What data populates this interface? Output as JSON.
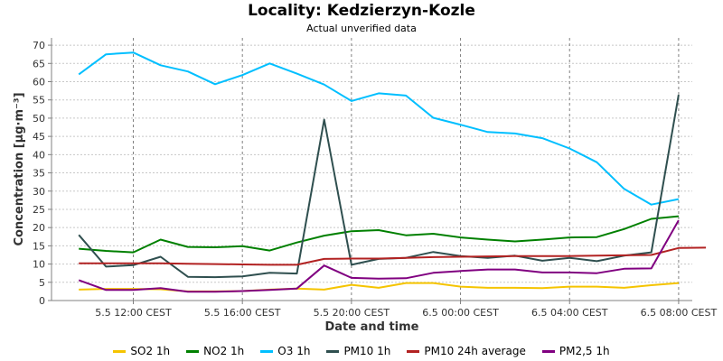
{
  "header": {
    "title": "Locality: Kedzierzyn-Kozle",
    "subtitle": "Actual unverified data"
  },
  "chart_data": {
    "type": "line",
    "xlabel": "Date and time",
    "ylabel": "Concentration [µg·m⁻³]",
    "ylim": [
      0,
      72
    ],
    "yticks": [
      0,
      5,
      10,
      15,
      20,
      25,
      30,
      35,
      40,
      45,
      50,
      55,
      60,
      65,
      70
    ],
    "xlim": [
      "2024-05-05 09:00",
      "2024-05-06 08:30"
    ],
    "xticks": [
      {
        "t": "2024-05-05 12:00",
        "label": "5.5 12:00 CEST"
      },
      {
        "t": "2024-05-05 16:00",
        "label": "5.5 16:00 CEST"
      },
      {
        "t": "2024-05-05 20:00",
        "label": "5.5 20:00 CEST"
      },
      {
        "t": "2024-05-06 00:00",
        "label": "6.5 00:00 CEST"
      },
      {
        "t": "2024-05-06 04:00",
        "label": "6.5 04:00 CEST"
      },
      {
        "t": "2024-05-06 08:00",
        "label": "6.5 08:00 CEST"
      }
    ],
    "grid": true,
    "legend_position": "bottom",
    "x": [
      "2024-05-05 10:00",
      "2024-05-05 11:00",
      "2024-05-05 12:00",
      "2024-05-05 13:00",
      "2024-05-05 14:00",
      "2024-05-05 15:00",
      "2024-05-05 16:00",
      "2024-05-05 17:00",
      "2024-05-05 18:00",
      "2024-05-05 19:00",
      "2024-05-05 20:00",
      "2024-05-05 21:00",
      "2024-05-05 22:00",
      "2024-05-05 23:00",
      "2024-05-06 00:00",
      "2024-05-06 01:00",
      "2024-05-06 02:00",
      "2024-05-06 03:00",
      "2024-05-06 04:00",
      "2024-05-06 05:00",
      "2024-05-06 06:00",
      "2024-05-06 07:00"
    ],
    "series": [
      {
        "name": "SO2 1h",
        "color": "#f5c400",
        "values": [
          3.0,
          3.2,
          3.2,
          3.1,
          2.5,
          2.5,
          2.6,
          3.0,
          3.3,
          3.0,
          4.3,
          3.5,
          4.8,
          4.8,
          3.8,
          3.5,
          3.5,
          3.4,
          3.8,
          3.8,
          3.5,
          4.2
        ]
      },
      {
        "name": "NO2 1h",
        "color": "#008000",
        "values": [
          14.2,
          13.6,
          13.2,
          16.7,
          14.7,
          14.6,
          14.9,
          13.7,
          15.9,
          17.8,
          19.0,
          19.3,
          17.9,
          18.3,
          17.3,
          16.7,
          16.2,
          16.7,
          17.3,
          17.4,
          19.6,
          22.4
        ]
      },
      {
        "name": "O3 1h",
        "color": "#00bfff",
        "values": [
          62.0,
          67.5,
          68.0,
          64.5,
          62.8,
          59.3,
          61.8,
          65.0,
          62.2,
          59.2,
          54.7,
          56.8,
          56.2,
          50.1,
          48.2,
          46.2,
          45.8,
          44.5,
          41.7,
          37.9,
          30.6,
          26.3
        ]
      },
      {
        "name": "PM10 1h",
        "color": "#2f4f4f",
        "values": [
          18.0,
          9.3,
          9.7,
          12.0,
          6.5,
          6.4,
          6.6,
          7.6,
          7.4,
          49.6,
          9.8,
          11.4,
          11.7,
          13.3,
          12.2,
          11.7,
          12.3,
          10.9,
          11.7,
          10.8,
          12.3,
          13.2
        ]
      },
      {
        "name": "PM10 24h average",
        "color": "#b22222",
        "values": [
          10.2,
          10.2,
          10.2,
          10.2,
          10.1,
          10.0,
          9.9,
          9.8,
          9.8,
          11.4,
          11.5,
          11.5,
          11.7,
          11.9,
          12.0,
          12.1,
          12.2,
          12.2,
          12.2,
          12.3,
          12.4,
          12.5
        ]
      },
      {
        "name": "PM2,5 1h",
        "color": "#800080",
        "values": [
          5.6,
          2.9,
          2.9,
          3.4,
          2.4,
          2.4,
          2.6,
          2.9,
          3.3,
          9.6,
          6.2,
          6.0,
          6.1,
          7.6,
          8.1,
          8.5,
          8.5,
          7.7,
          7.7,
          7.5,
          8.7,
          8.8
        ]
      }
    ],
    "extra_points": {
      "SO2 1h": [
        [
          "2024-05-06 08:00",
          4.8
        ]
      ],
      "NO2 1h": [
        [
          "2024-05-06 08:00",
          23.1
        ]
      ],
      "O3 1h": [
        [
          "2024-05-06 08:00",
          27.8
        ]
      ],
      "PM10 1h": [
        [
          "2024-05-06 08:00",
          56.4
        ]
      ],
      "PM10 24h average": [
        [
          "2024-05-06 08:00",
          14.4
        ],
        [
          "2024-05-06 09:00",
          14.5
        ]
      ],
      "PM2,5 1h": [
        [
          "2024-05-06 08:00",
          22.0
        ]
      ]
    }
  }
}
